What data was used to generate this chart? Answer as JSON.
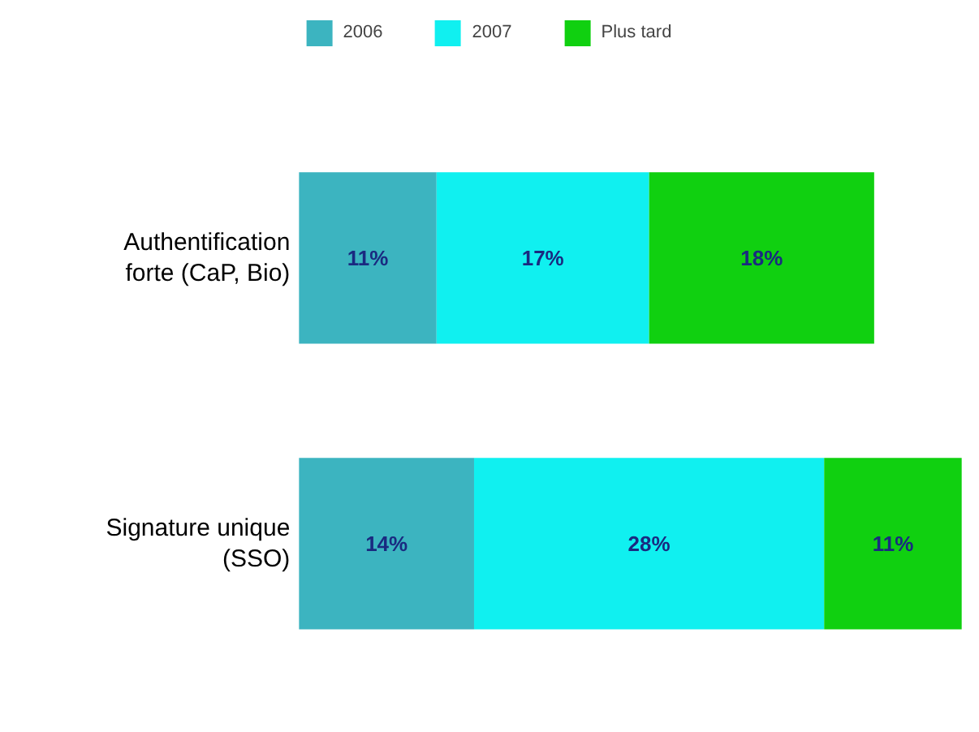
{
  "chart_data": {
    "type": "bar",
    "orientation": "horizontal",
    "stacked": true,
    "legend": "top",
    "categories": [
      "Authentification forte (CaP, Bio)",
      "Signature unique (SSO)"
    ],
    "series": [
      {
        "name": "2006",
        "color": "#3cb4c0",
        "values": [
          11,
          14
        ],
        "value_labels": [
          "11%",
          "14%"
        ]
      },
      {
        "name": "2007",
        "color": "#10f0f0",
        "values": [
          17,
          28
        ],
        "value_labels": [
          "17%",
          "28%"
        ]
      },
      {
        "name": "Plus tard",
        "color": "#10d010",
        "values": [
          18,
          11
        ],
        "value_labels": [
          "18%",
          "11%"
        ]
      }
    ]
  }
}
